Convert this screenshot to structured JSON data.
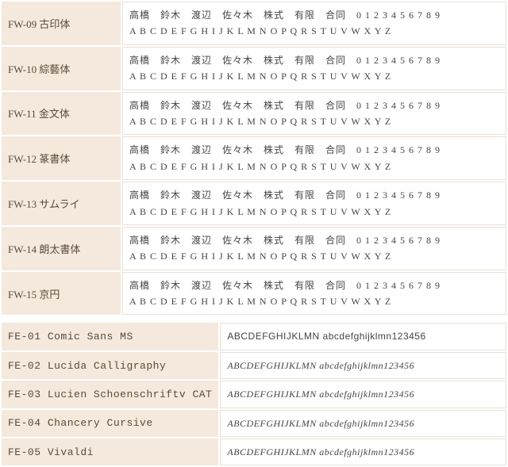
{
  "colors": {
    "label_bg": "#f5e9dd",
    "border": "#e9e0d6",
    "text_label": "#5a4a3a",
    "text_sample": "#444444",
    "page_bg": "#ffffff"
  },
  "jp_fonts": [
    {
      "code": "FW-09",
      "name": "古印体",
      "sample_line1": "高橋　鈴木　渡辺　佐々木　株式　有限　合同　0 1 2 3 4 5 6 7 8 9",
      "sample_line2": "A B C D E F G H I J K L M N O P Q R S T U V W X Y Z"
    },
    {
      "code": "FW-10",
      "name": "綜藝体",
      "sample_line1": "高橋　鈴木　渡辺　佐々木　株式　有限　合同　0 1 2 3 4 5 6 7 8 9",
      "sample_line2": "A B C D E F G H I J K L M N O P Q R S T U V W X Y Z"
    },
    {
      "code": "FW-11",
      "name": "金文体",
      "sample_line1": "高橋　鈴木　渡辺　佐々木　株式　有限　合同　0 1 2 3 4 5 6 7 8 9",
      "sample_line2": "A B C D E F G H I J K L M N O P Q R S T U V W X Y Z"
    },
    {
      "code": "FW-12",
      "name": "篆書体",
      "sample_line1": "高橋　鈴木　渡辺　佐々木　株式　有限　合同　0 1 2 3 4 5 6 7 8 9",
      "sample_line2": "A B C D E F G H I J K L M N O P Q R S T U V W X Y Z"
    },
    {
      "code": "FW-13",
      "name": "サムライ",
      "sample_line1": "高橋　鈴木　渡辺　佐々木　株式　有限　合同　0 1 2 3 4 5 6 7 8 9",
      "sample_line2": "A B C D E F G H I J K L M N O P Q R S T U V W X Y Z"
    },
    {
      "code": "FW-14",
      "name": "朗太書体",
      "sample_line1": "高橋　鈴木　渡辺　佐々木　株式　有限　合同　0 1 2 3 4 5 6 7 8 9",
      "sample_line2": "A B C D E F G H I J K L M N O P Q R S T U V W X Y Z"
    },
    {
      "code": "FW-15",
      "name": "京円",
      "sample_line1": "高橋　鈴木　渡辺　佐々木　株式　有限　合同　0 1 2 3 4 5 6 7 8 9",
      "sample_line2": "A B C D E F G H I J K L M N O P Q R S T U V W X Y Z"
    }
  ],
  "en_fonts": [
    {
      "code": "FE-01",
      "name": "Comic Sans MS",
      "sample": "ABCDEFGHIJKLMN abcdefghijklmn123456",
      "italic": false
    },
    {
      "code": "FE-02",
      "name": "Lucida Calligraphy",
      "sample": "ABCDEFGHIJKLMN  abcdefghijklmn123456",
      "italic": true
    },
    {
      "code": "FE-03",
      "name": "Lucien Schoenschriftv CAT",
      "sample": "ABCDEFGHIJKLMN     abcdefghijklmn123456",
      "italic": true
    },
    {
      "code": "FE-04",
      "name": "Chancery Cursive",
      "sample": "ABCDEFGHIJKLMN      abcdefghijklmn123456",
      "italic": true
    },
    {
      "code": "FE-05",
      "name": "Vivaldi",
      "sample": "ABCDEFGHIJKLMN  abcdefghijklmn123456",
      "italic": true
    }
  ]
}
